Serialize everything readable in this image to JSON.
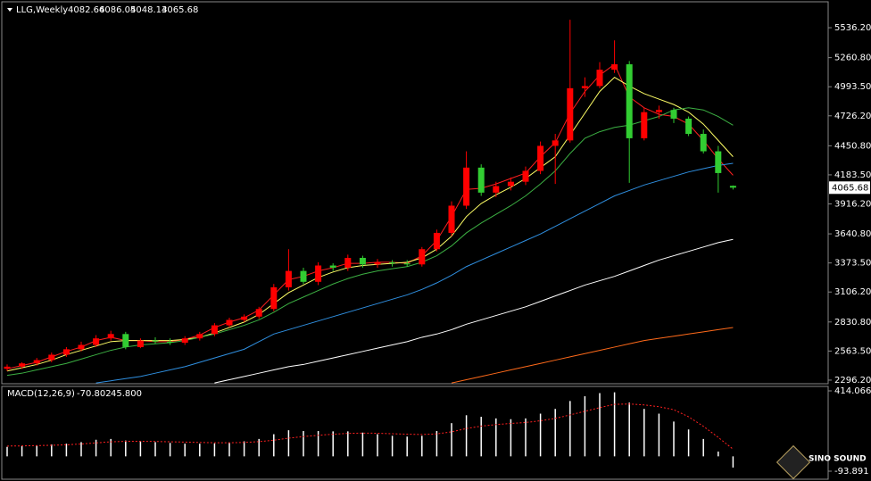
{
  "chart_data": {
    "type": "candlestick",
    "header": {
      "symbol": "LLG,Weekly"
    },
    "up_color": "#ff0000",
    "down_color": "#32cd32",
    "wick_color_up": "#ff0000",
    "wick_color_down": "#32cd32",
    "ylim": [
      2263,
      5750
    ],
    "yticks": [
      {
        "value": 5536.2,
        "label": "5536.20"
      },
      {
        "value": 5260.8,
        "label": "5260.80"
      },
      {
        "value": 4993.5,
        "label": "4993.50"
      },
      {
        "value": 4726.2,
        "label": "4726.20"
      },
      {
        "value": 4450.8,
        "label": "4450.80"
      },
      {
        "value": 4183.5,
        "label": "4183.50"
      },
      {
        "value": 3916.2,
        "label": "3916.20"
      },
      {
        "value": 3640.8,
        "label": "3640.80"
      },
      {
        "value": 3373.5,
        "label": "3373.50"
      },
      {
        "value": 3106.2,
        "label": "3106.20"
      },
      {
        "value": 2830.8,
        "label": "2830.80"
      },
      {
        "value": 2563.5,
        "label": "2563.50"
      },
      {
        "value": 2296.2,
        "label": "2296.20"
      }
    ],
    "candles": {
      "open": [
        2400,
        2420,
        2450,
        2480,
        2530,
        2580,
        2620,
        2680,
        2720,
        2600,
        2660,
        2650,
        2640,
        2680,
        2720,
        2800,
        2850,
        2880,
        2950,
        3150,
        3300,
        3200,
        3350,
        3330,
        3420,
        3360,
        3380,
        3370,
        3360,
        3500,
        3650,
        3900,
        4250,
        4020,
        4080,
        4120,
        4220,
        4450,
        4500,
        4980,
        5000,
        5150,
        5200,
        4520,
        4760,
        4780,
        4700,
        4560,
        4400,
        4082.66
      ],
      "high": [
        2440,
        2460,
        2500,
        2550,
        2600,
        2650,
        2710,
        2750,
        2740,
        2680,
        2690,
        2680,
        2700,
        2740,
        2820,
        2870,
        2900,
        2970,
        3180,
        3500,
        3330,
        3380,
        3370,
        3450,
        3440,
        3410,
        3400,
        3400,
        3520,
        3680,
        3940,
        4400,
        4280,
        4120,
        4160,
        4260,
        4490,
        4560,
        5610,
        5080,
        5220,
        5420,
        5230,
        4800,
        4820,
        4800,
        4720,
        4600,
        4450,
        4086.05
      ],
      "low": [
        2380,
        2400,
        2430,
        2460,
        2510,
        2560,
        2600,
        2660,
        2580,
        2590,
        2630,
        2620,
        2620,
        2660,
        2700,
        2780,
        2830,
        2860,
        2930,
        3120,
        3180,
        3170,
        3300,
        3300,
        3330,
        3330,
        3340,
        3340,
        3340,
        3480,
        3620,
        3870,
        3990,
        3980,
        4040,
        4090,
        4190,
        4100,
        4480,
        4900,
        4980,
        5120,
        4110,
        4500,
        4700,
        4660,
        4540,
        4380,
        4020,
        4048.13
      ],
      "close": [
        2420,
        2450,
        2480,
        2530,
        2580,
        2620,
        2680,
        2720,
        2600,
        2660,
        2650,
        2640,
        2680,
        2720,
        2800,
        2850,
        2880,
        2950,
        3150,
        3300,
        3200,
        3350,
        3330,
        3420,
        3360,
        3380,
        3370,
        3360,
        3500,
        3650,
        3900,
        4250,
        4020,
        4080,
        4120,
        4220,
        4450,
        4500,
        4980,
        5000,
        5150,
        5200,
        4520,
        4760,
        4780,
        4700,
        4560,
        4400,
        4200,
        4065.68
      ]
    },
    "series": [
      {
        "color": "#ff2020",
        "values": [
          2400,
          2430,
          2460,
          2510,
          2560,
          2600,
          2660,
          2690,
          2660,
          2660,
          2650,
          2650,
          2670,
          2710,
          2780,
          2830,
          2870,
          2940,
          3080,
          3220,
          3250,
          3300,
          3330,
          3370,
          3370,
          3380,
          3380,
          3370,
          3440,
          3580,
          3800,
          4050,
          4060,
          4100,
          4150,
          4200,
          4350,
          4480,
          4750,
          4950,
          5100,
          5200,
          4900,
          4800,
          4740,
          4720,
          4650,
          4500,
          4330,
          4180
        ]
      },
      {
        "color": "#ffff66",
        "values": [
          2380,
          2410,
          2440,
          2480,
          2530,
          2570,
          2610,
          2650,
          2660,
          2660,
          2660,
          2660,
          2670,
          2690,
          2730,
          2780,
          2830,
          2900,
          3000,
          3100,
          3170,
          3240,
          3290,
          3330,
          3350,
          3360,
          3370,
          3380,
          3420,
          3500,
          3620,
          3800,
          3920,
          4000,
          4070,
          4150,
          4250,
          4350,
          4550,
          4750,
          4950,
          5080,
          5000,
          4930,
          4880,
          4830,
          4760,
          4650,
          4500,
          4350
        ]
      },
      {
        "color": "#3cb043",
        "values": [
          2340,
          2360,
          2390,
          2420,
          2450,
          2490,
          2530,
          2570,
          2600,
          2620,
          2630,
          2640,
          2660,
          2690,
          2720,
          2760,
          2800,
          2850,
          2920,
          3000,
          3060,
          3120,
          3180,
          3230,
          3270,
          3300,
          3320,
          3340,
          3380,
          3440,
          3530,
          3650,
          3740,
          3820,
          3900,
          3990,
          4100,
          4220,
          4380,
          4520,
          4580,
          4620,
          4640,
          4680,
          4720,
          4780,
          4800,
          4780,
          4720,
          4640
        ]
      },
      {
        "color": "#2f8fe0",
        "values": [
          null,
          null,
          null,
          null,
          null,
          null,
          2270,
          2290,
          2310,
          2330,
          2360,
          2390,
          2420,
          2460,
          2500,
          2540,
          2580,
          2650,
          2720,
          2760,
          2800,
          2840,
          2880,
          2920,
          2960,
          3000,
          3040,
          3080,
          3130,
          3190,
          3260,
          3340,
          3400,
          3460,
          3520,
          3580,
          3640,
          3710,
          3780,
          3850,
          3920,
          3990,
          4040,
          4090,
          4130,
          4170,
          4210,
          4240,
          4270,
          4290
        ]
      },
      {
        "color": "#ffffff",
        "values": [
          null,
          null,
          null,
          null,
          null,
          null,
          null,
          null,
          null,
          null,
          null,
          null,
          null,
          null,
          2270,
          2300,
          2330,
          2360,
          2390,
          2420,
          2440,
          2470,
          2500,
          2530,
          2560,
          2590,
          2620,
          2650,
          2690,
          2720,
          2760,
          2810,
          2850,
          2890,
          2930,
          2970,
          3020,
          3070,
          3120,
          3170,
          3210,
          3250,
          3300,
          3350,
          3400,
          3440,
          3480,
          3520,
          3560,
          3590
        ]
      },
      {
        "color": "#ff6a1a",
        "values": [
          null,
          null,
          null,
          null,
          null,
          null,
          null,
          null,
          null,
          null,
          null,
          null,
          null,
          null,
          null,
          null,
          null,
          null,
          null,
          null,
          null,
          null,
          null,
          null,
          null,
          null,
          null,
          null,
          null,
          null,
          2270,
          2300,
          2330,
          2360,
          2390,
          2420,
          2450,
          2480,
          2510,
          2540,
          2570,
          2600,
          2630,
          2660,
          2680,
          2700,
          2720,
          2740,
          2760,
          2780
        ]
      }
    ],
    "macd": {
      "label": "MACD(12,26,9)",
      "ylim": [
        -93.891,
        414.066
      ],
      "yticks": [
        414.066,
        -93.891
      ],
      "hist_color": "#ffffff",
      "signal_color": "#ff2020",
      "histogram": [
        60,
        65,
        70,
        75,
        80,
        90,
        105,
        110,
        100,
        95,
        90,
        85,
        80,
        80,
        82,
        85,
        95,
        110,
        140,
        165,
        160,
        160,
        158,
        158,
        150,
        140,
        130,
        125,
        130,
        160,
        210,
        260,
        250,
        240,
        235,
        240,
        270,
        300,
        350,
        380,
        400,
        405,
        340,
        300,
        270,
        220,
        170,
        110,
        30,
        -70.802
      ],
      "signal": [
        65,
        66,
        68,
        70,
        73,
        78,
        85,
        92,
        95,
        95,
        94,
        92,
        90,
        88,
        86,
        86,
        88,
        93,
        102,
        115,
        125,
        133,
        140,
        145,
        147,
        146,
        143,
        140,
        138,
        142,
        155,
        176,
        191,
        201,
        208,
        214,
        225,
        240,
        262,
        285,
        308,
        329,
        331,
        325,
        314,
        295,
        250,
        190,
        120,
        45.8
      ],
      "signal_value_labels": {
        "49": "45.800"
      }
    },
    "logo": "SINO SOUND"
  }
}
